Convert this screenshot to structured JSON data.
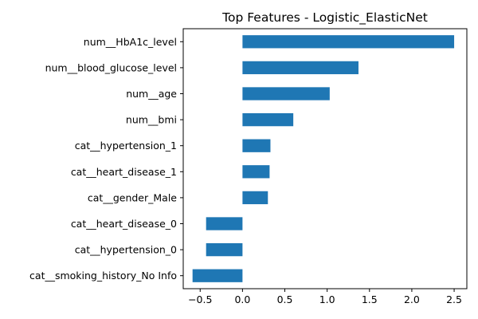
{
  "chart_data": {
    "type": "bar",
    "orientation": "horizontal",
    "title": "Top Features - Logistic_ElasticNet",
    "xlabel": "",
    "ylabel": "",
    "categories": [
      "num__HbA1c_level",
      "num__blood_glucose_level",
      "num__age",
      "num__bmi",
      "cat__hypertension_1",
      "cat__heart_disease_1",
      "cat__gender_Male",
      "cat__heart_disease_0",
      "cat__hypertension_0",
      "cat__smoking_history_No Info"
    ],
    "values": [
      2.5,
      1.37,
      1.03,
      0.6,
      0.33,
      0.32,
      0.3,
      -0.43,
      -0.43,
      -0.59
    ],
    "xlim": [
      -0.7,
      2.65
    ],
    "xticks": [
      -0.5,
      0.0,
      0.5,
      1.0,
      1.5,
      2.0,
      2.5
    ],
    "xtick_labels": [
      "−0.5",
      "0.0",
      "0.5",
      "1.0",
      "1.5",
      "2.0",
      "2.5"
    ],
    "bar_color": "#1f77b4",
    "grid": false,
    "legend": "none"
  }
}
